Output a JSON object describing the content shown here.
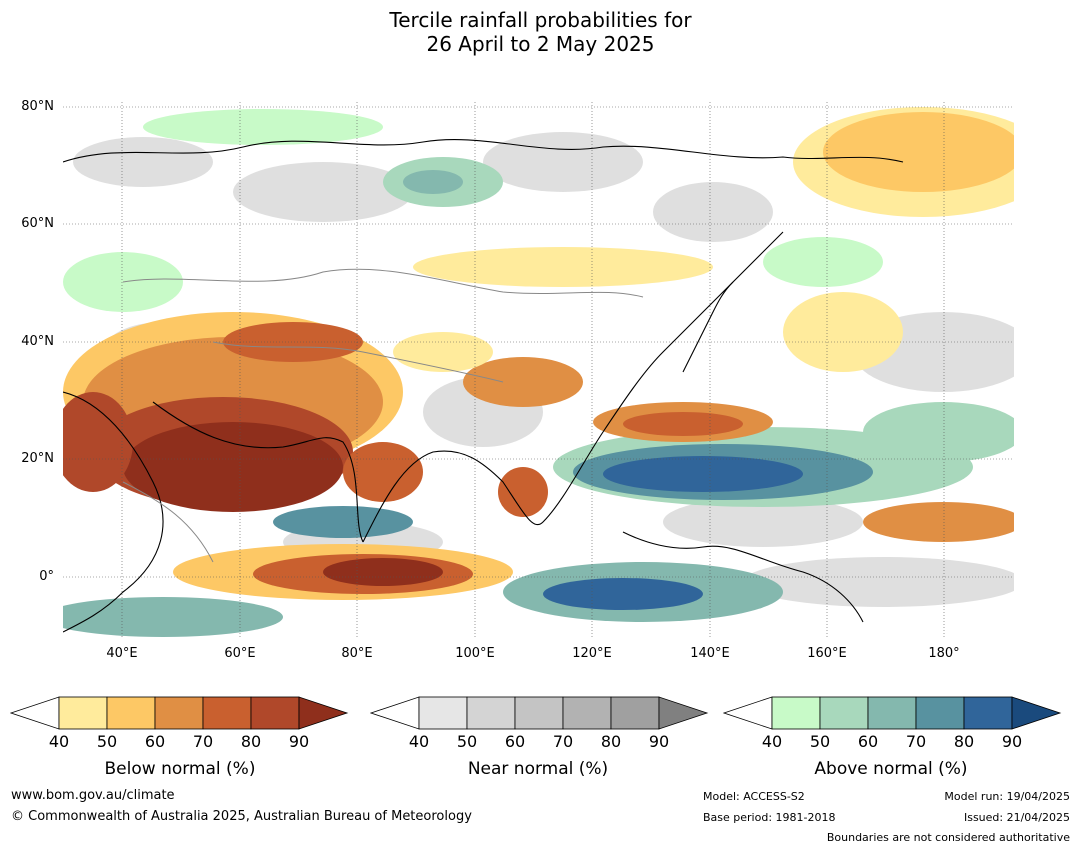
{
  "title_line1": "Tercile rainfall probabilities for",
  "title_line2": "26 April to 2 May 2025",
  "lat_labels": [
    "80°N",
    "60°N",
    "40°N",
    "20°N",
    "0°"
  ],
  "lon_labels": [
    "40°E",
    "60°E",
    "80°E",
    "100°E",
    "120°E",
    "140°E",
    "160°E",
    "180°"
  ],
  "colorbars": [
    {
      "label": "Below normal (%)",
      "ticks": [
        "40",
        "50",
        "60",
        "70",
        "80",
        "90"
      ],
      "colors": [
        "#ffeb9c",
        "#fdc865",
        "#e08f44",
        "#c9602f",
        "#b0482a",
        "#8f2f1c"
      ]
    },
    {
      "label": "Near normal (%)",
      "ticks": [
        "40",
        "50",
        "60",
        "70",
        "80",
        "90"
      ],
      "colors": [
        "#e6e6e6",
        "#d4d4d4",
        "#c4c4c4",
        "#b2b2b2",
        "#a0a0a0",
        "#808080"
      ]
    },
    {
      "label": "Above normal (%)",
      "ticks": [
        "40",
        "50",
        "60",
        "70",
        "80",
        "90"
      ],
      "colors": [
        "#c8fac8",
        "#a8d8bc",
        "#84b8ae",
        "#5892a0",
        "#30659a",
        "#1a4a7d"
      ]
    }
  ],
  "footer": {
    "website": "www.bom.gov.au/climate",
    "copyright": "© Commonwealth of Australia 2025, Australian Bureau of Meteorology",
    "model": "Model: ACCESS-S2",
    "base_period": "Base period: 1981-2018",
    "model_run": "Model run: 19/04/2025",
    "issued": "Issued: 21/04/2025",
    "boundaries": "Boundaries are not considered authoritative"
  }
}
